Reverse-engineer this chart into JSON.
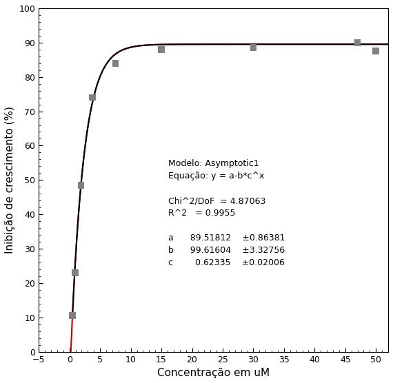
{
  "data_x": [
    0.47,
    0.94,
    1.875,
    3.75,
    7.5,
    15,
    30,
    47,
    50
  ],
  "data_y": [
    10.5,
    23.0,
    48.5,
    74.0,
    84.0,
    88.0,
    88.5,
    90.0,
    87.5
  ],
  "marker_color": "#808080",
  "marker_size": 7,
  "black_line_color": "#000000",
  "red_line_color": "#cc0000",
  "a": 89.51812,
  "b": 99.61604,
  "c": 0.62335,
  "a_black": 87.5,
  "b_black": 99.61604,
  "c_black": 0.62335,
  "xlabel": "Concentração em uM",
  "ylabel": "Inibição de crescimento (%)",
  "xlim": [
    -5,
    52
  ],
  "ylim": [
    0,
    100
  ],
  "xticks": [
    -5,
    0,
    5,
    10,
    15,
    20,
    25,
    30,
    35,
    40,
    45,
    50
  ],
  "yticks": [
    0,
    10,
    20,
    30,
    40,
    50,
    60,
    70,
    80,
    90,
    100
  ],
  "background_color": "#ffffff",
  "font_size_label": 11,
  "font_size_tick": 9,
  "font_size_annotation": 9,
  "red_x_start": -5,
  "black_x_start": 0.47
}
